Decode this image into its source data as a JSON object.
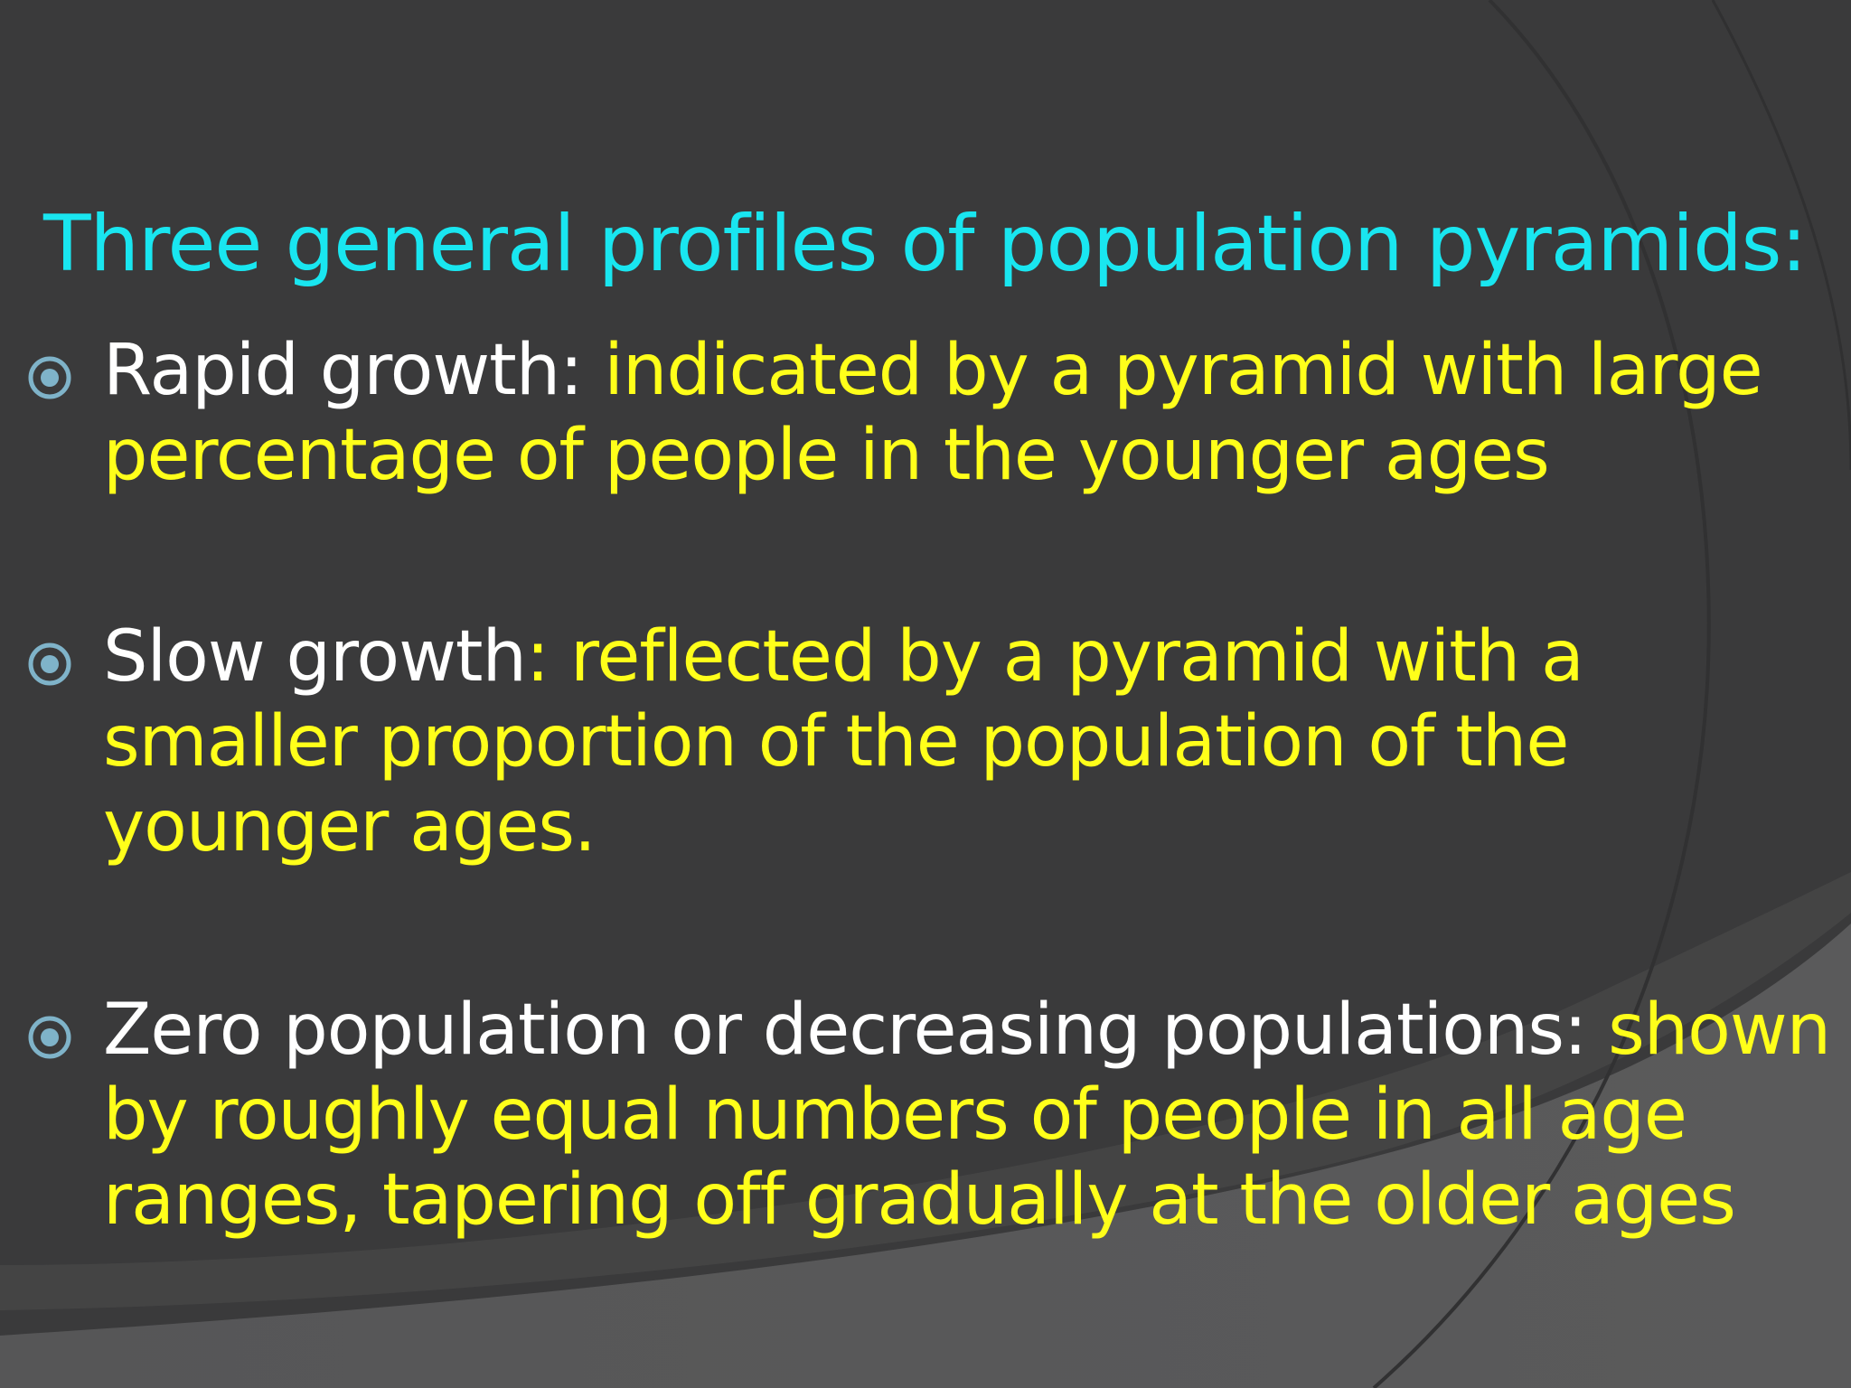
{
  "colors": {
    "background": "#3a3a3b",
    "background_band": "#4a4a4b",
    "title": "#19e6f0",
    "label": "#ffffff",
    "description": "#ffff1a",
    "bullet": "#7fb3c9"
  },
  "slide": {
    "title": "Three general profiles of population pyramids:",
    "bullets": [
      {
        "icon": "target-bullet-icon",
        "label": "Rapid growth:",
        "description": " indicated by a pyramid with large percentage of people in the younger ages"
      },
      {
        "icon": "target-bullet-icon",
        "label": "Slow growth",
        "description": ": reflected by a pyramid with a smaller proportion of the population of the younger ages."
      },
      {
        "icon": "target-bullet-icon",
        "label": "Zero population or decreasing populations:",
        "description": " shown by roughly equal numbers of people in all age ranges, tapering off gradually at the older ages"
      }
    ]
  }
}
